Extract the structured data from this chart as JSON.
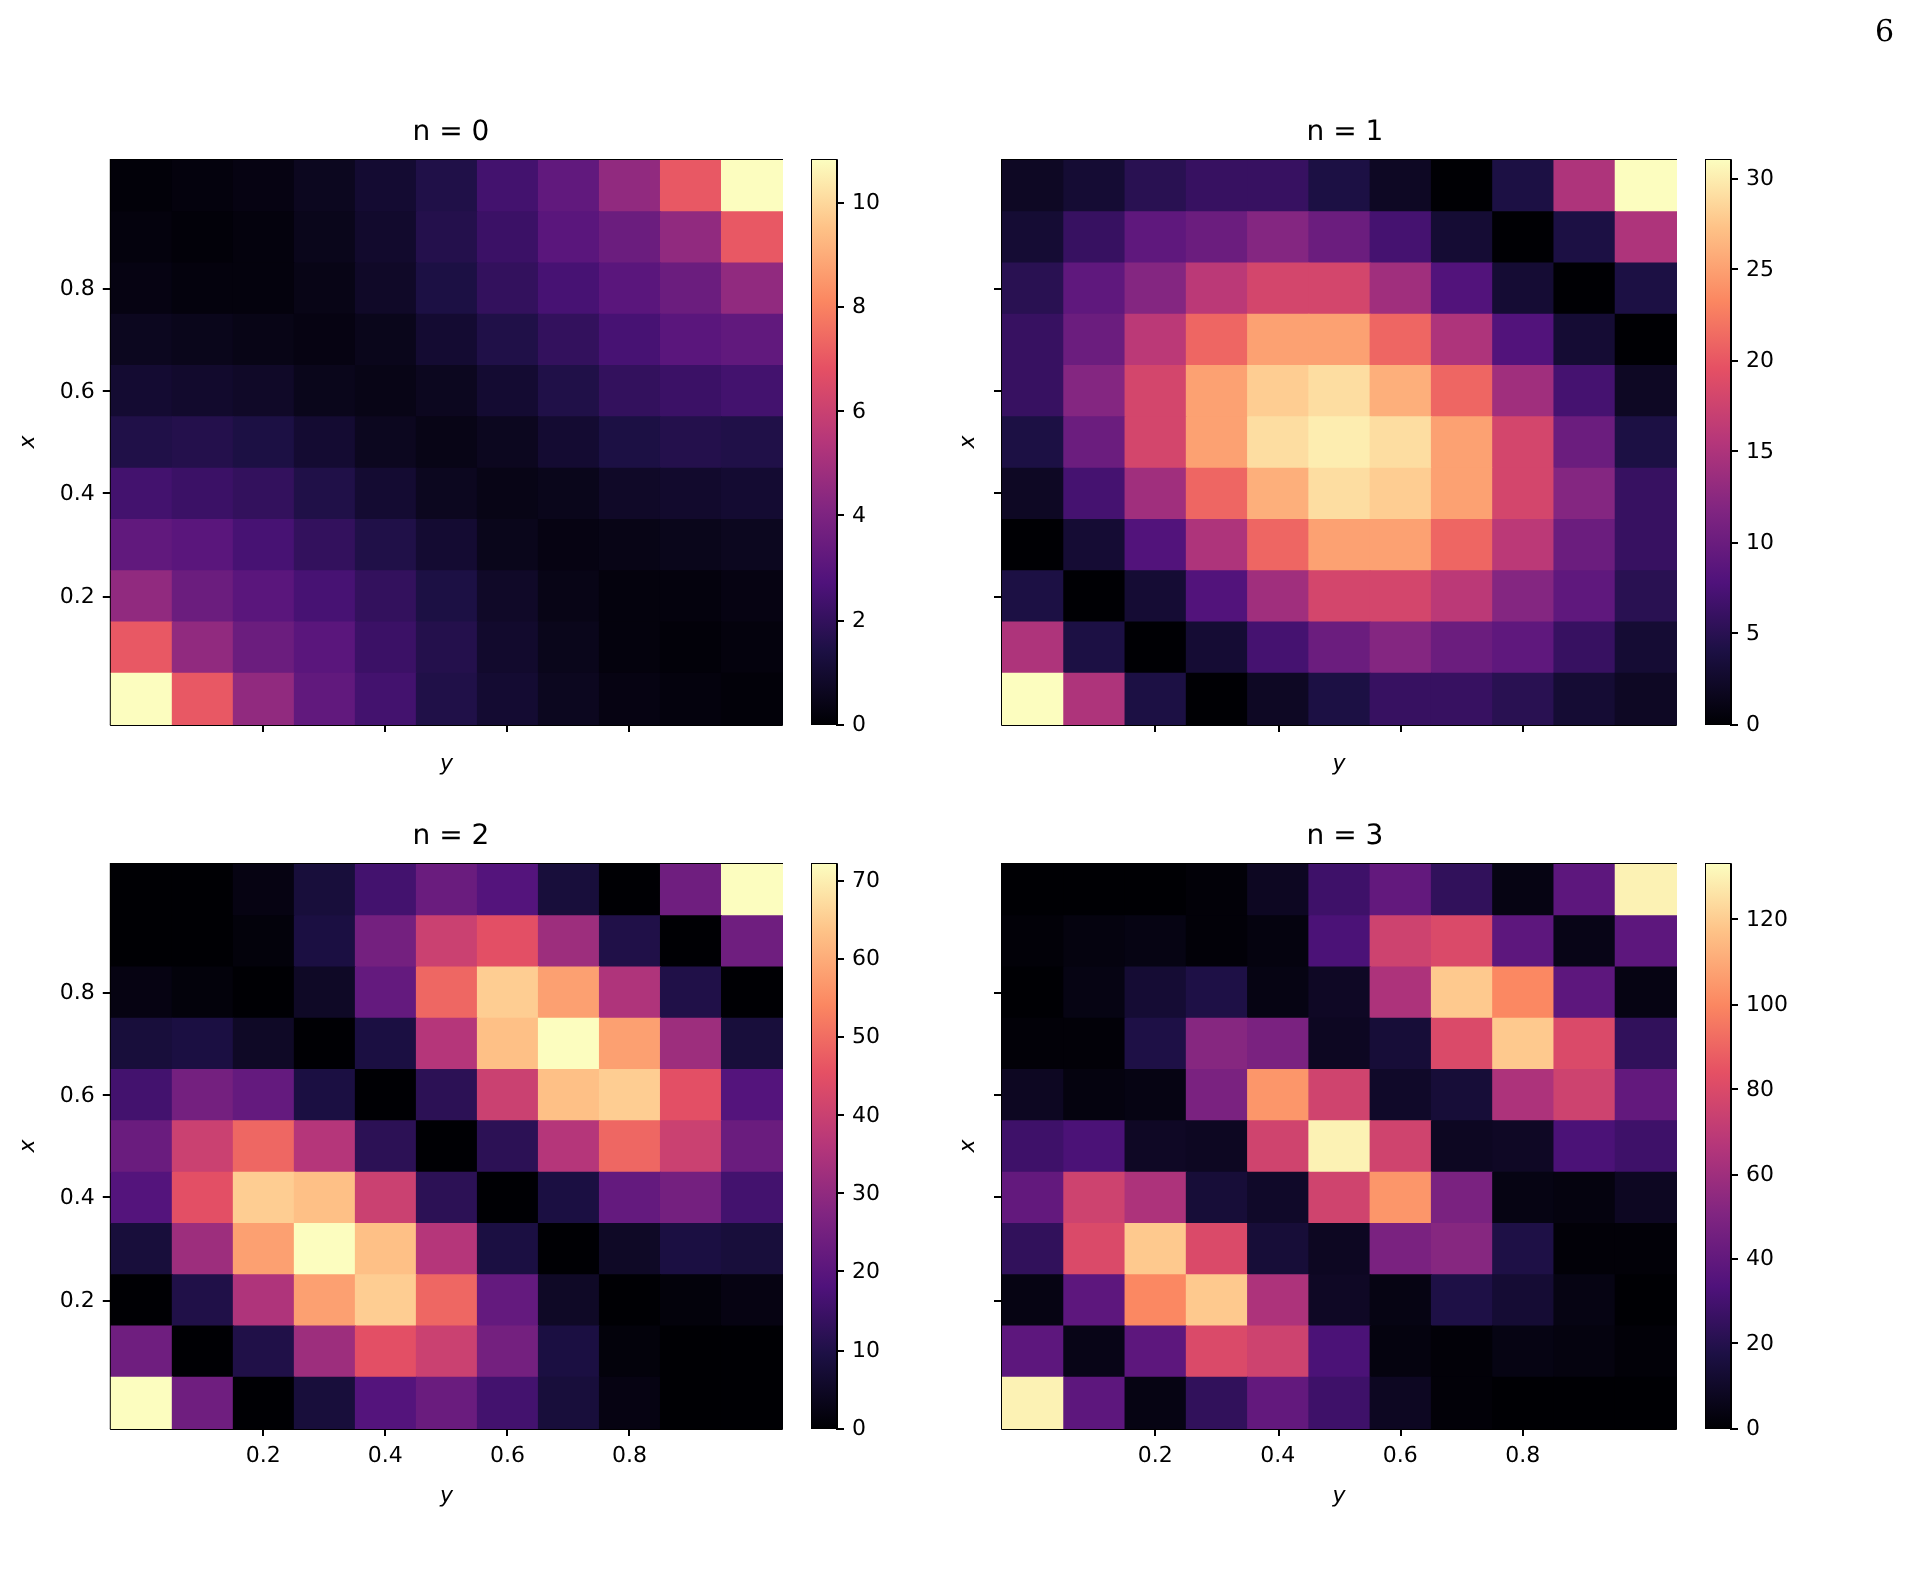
{
  "chart_data": [
    {
      "type": "heatmap",
      "title": "n = 0",
      "xlabel": "y",
      "ylabel": "x",
      "tick_labels": "y",
      "categories": [
        null,
        null,
        "0.2",
        null,
        "0.4",
        null,
        "0.6",
        null,
        "0.8",
        null,
        null
      ],
      "y_categories": [
        null,
        null,
        "0.8",
        null,
        "0.6",
        null,
        "0.4",
        null,
        "0.2",
        null,
        null
      ],
      "clim": [
        0,
        10.8
      ],
      "cticks": [
        0,
        2,
        4,
        6,
        8,
        10
      ],
      "cells": [
        [
          0.1,
          0.2,
          0.3,
          0.6,
          1,
          1.5,
          2.4,
          3.2,
          4.5,
          7,
          10.8
        ],
        [
          0.2,
          0.1,
          0.2,
          0.5,
          0.9,
          1.6,
          2.2,
          3,
          3.5,
          4.5,
          7
        ],
        [
          0.3,
          0.2,
          0.2,
          0.4,
          0.8,
          1.4,
          2,
          2.5,
          3,
          3.5,
          4.5
        ],
        [
          0.6,
          0.5,
          0.4,
          0.3,
          0.5,
          1,
          1.5,
          2,
          2.5,
          3,
          3.2
        ],
        [
          1,
          0.9,
          0.8,
          0.5,
          0.4,
          0.6,
          1,
          1.5,
          2,
          2.2,
          2.4
        ],
        [
          1.5,
          1.6,
          1.4,
          1,
          0.6,
          0.4,
          0.6,
          1,
          1.4,
          1.6,
          1.5
        ],
        [
          2.4,
          2.2,
          2,
          1.5,
          1,
          0.6,
          0.4,
          0.5,
          0.8,
          0.9,
          1
        ],
        [
          3.2,
          3,
          2.5,
          2,
          1.5,
          1,
          0.5,
          0.3,
          0.4,
          0.5,
          0.6
        ],
        [
          4.5,
          3.5,
          3,
          2.5,
          2,
          1.4,
          0.8,
          0.4,
          0.2,
          0.2,
          0.3
        ],
        [
          7,
          4.5,
          3.5,
          3,
          2.2,
          1.6,
          0.9,
          0.5,
          0.2,
          0.1,
          0.2
        ],
        [
          10.8,
          7,
          4.5,
          3.2,
          2.4,
          1.5,
          1,
          0.6,
          0.3,
          0.2,
          0.1
        ]
      ]
    },
    {
      "type": "heatmap",
      "title": "n = 1",
      "xlabel": "y",
      "ylabel": "x",
      "tick_labels": false,
      "annotations": [
        "6"
      ],
      "categories": [
        null,
        null,
        "0.2",
        null,
        "0.4",
        null,
        "0.6",
        null,
        "0.8",
        null,
        null
      ],
      "y_categories": [
        null,
        null,
        "0.8",
        null,
        "0.6",
        null,
        "0.4",
        null,
        "0.2",
        null,
        null
      ],
      "clim": [
        0,
        31
      ],
      "cticks": [
        0,
        5,
        10,
        15,
        20,
        25,
        30
      ],
      "cells": [
        [
          2,
          3,
          5,
          6,
          6,
          4,
          2,
          0,
          4,
          15,
          31
        ],
        [
          3,
          6,
          9,
          10,
          12,
          10,
          7,
          3,
          0,
          4,
          15
        ],
        [
          5,
          9,
          12,
          16,
          18,
          18,
          14,
          8,
          3,
          0,
          4
        ],
        [
          6,
          10,
          16,
          21,
          25,
          25,
          21,
          15,
          8,
          3,
          0
        ],
        [
          6,
          12,
          18,
          25,
          28,
          29,
          26,
          21,
          14,
          7,
          2
        ],
        [
          4,
          10,
          18,
          25,
          29,
          30,
          29,
          25,
          18,
          10,
          4
        ],
        [
          2,
          7,
          14,
          21,
          26,
          29,
          28,
          25,
          18,
          12,
          6
        ],
        [
          0,
          3,
          8,
          15,
          21,
          25,
          25,
          21,
          16,
          10,
          6
        ],
        [
          4,
          0,
          3,
          8,
          14,
          18,
          18,
          16,
          12,
          9,
          5
        ],
        [
          15,
          4,
          0,
          3,
          7,
          10,
          12,
          10,
          9,
          6,
          3
        ],
        [
          31,
          15,
          4,
          0,
          2,
          4,
          6,
          6,
          5,
          3,
          2
        ]
      ]
    },
    {
      "type": "heatmap",
      "title": "n = 2",
      "xlabel": "y",
      "ylabel": "x",
      "categories": [
        null,
        null,
        "0.2",
        null,
        "0.4",
        null,
        "0.6",
        null,
        "0.8",
        null,
        null
      ],
      "y_categories": [
        null,
        null,
        "0.8",
        null,
        "0.6",
        null,
        "0.4",
        null,
        "0.2",
        null,
        null
      ],
      "clim": [
        0,
        72
      ],
      "cticks": [
        0,
        10,
        20,
        30,
        40,
        50,
        60,
        70
      ],
      "cells": [
        [
          0,
          0,
          2,
          8,
          16,
          23,
          19,
          8,
          0,
          24,
          72
        ],
        [
          0,
          0,
          1,
          9,
          25,
          40,
          45,
          32,
          10,
          0,
          24
        ],
        [
          2,
          1,
          0,
          5,
          22,
          49,
          65,
          58,
          35,
          10,
          0
        ],
        [
          8,
          9,
          5,
          0,
          9,
          36,
          63,
          72,
          58,
          32,
          8
        ],
        [
          16,
          25,
          22,
          9,
          0,
          12,
          40,
          63,
          65,
          45,
          19
        ],
        [
          23,
          40,
          49,
          36,
          12,
          0,
          12,
          36,
          49,
          40,
          23
        ],
        [
          19,
          45,
          65,
          63,
          40,
          12,
          0,
          9,
          22,
          25,
          16
        ],
        [
          8,
          32,
          58,
          72,
          63,
          36,
          9,
          0,
          5,
          9,
          8
        ],
        [
          0,
          10,
          35,
          58,
          65,
          49,
          22,
          5,
          0,
          1,
          2
        ],
        [
          24,
          0,
          10,
          32,
          45,
          40,
          25,
          9,
          1,
          0,
          0
        ],
        [
          72,
          24,
          0,
          8,
          19,
          23,
          16,
          8,
          2,
          0,
          0
        ]
      ]
    },
    {
      "type": "heatmap",
      "title": "n = 3",
      "xlabel": "y",
      "ylabel": "x",
      "tick_labels": "x",
      "categories": [
        null,
        null,
        "0.2",
        null,
        "0.4",
        null,
        "0.6",
        null,
        "0.8",
        null,
        null
      ],
      "y_categories": [
        null,
        null,
        "0.8",
        null,
        "0.6",
        null,
        "0.4",
        null,
        "0.2",
        null,
        null
      ],
      "clim": [
        0,
        133
      ],
      "cticks": [
        0,
        20,
        40,
        60,
        80,
        100,
        120
      ],
      "cells": [
        [
          0,
          0,
          0,
          1,
          8,
          28,
          40,
          24,
          4,
          38,
          130
        ],
        [
          1,
          3,
          4,
          1,
          3,
          32,
          75,
          80,
          38,
          5,
          38
        ],
        [
          0,
          4,
          13,
          18,
          4,
          9,
          64,
          119,
          100,
          38,
          4
        ],
        [
          1,
          1,
          18,
          52,
          48,
          8,
          14,
          80,
          119,
          80,
          24
        ],
        [
          8,
          3,
          4,
          48,
          104,
          76,
          10,
          14,
          64,
          75,
          40
        ],
        [
          28,
          32,
          9,
          8,
          76,
          130,
          76,
          8,
          9,
          32,
          28
        ],
        [
          40,
          75,
          64,
          14,
          10,
          76,
          104,
          48,
          4,
          3,
          8
        ],
        [
          24,
          80,
          119,
          80,
          14,
          8,
          48,
          52,
          18,
          1,
          1
        ],
        [
          4,
          38,
          100,
          119,
          64,
          9,
          4,
          18,
          13,
          4,
          0
        ],
        [
          38,
          5,
          38,
          80,
          75,
          32,
          3,
          1,
          4,
          3,
          1
        ],
        [
          130,
          38,
          4,
          24,
          40,
          28,
          8,
          1,
          0,
          0,
          0
        ]
      ]
    }
  ]
}
